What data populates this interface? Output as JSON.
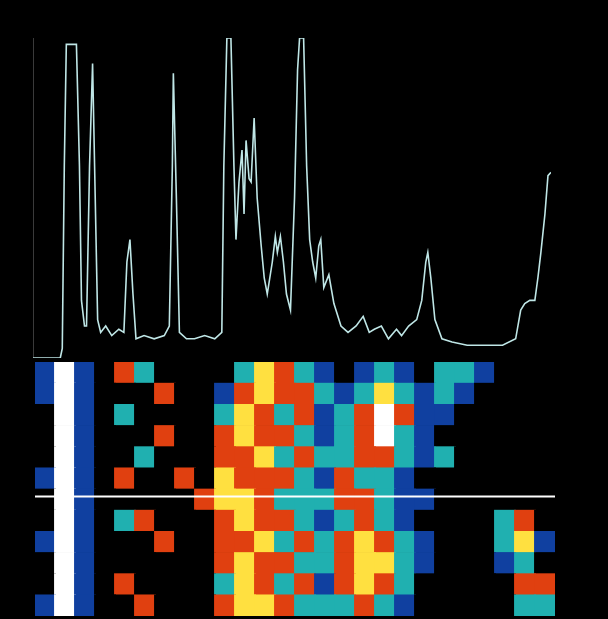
{
  "chart_data": [
    {
      "type": "line",
      "x": [
        0,
        27,
        29,
        31,
        33,
        43,
        46,
        48,
        51,
        53,
        56,
        59,
        61,
        64,
        67,
        72,
        78,
        85,
        90,
        93,
        96,
        99,
        102,
        110,
        120,
        130,
        135,
        138,
        139,
        142,
        145,
        152,
        160,
        170,
        180,
        187,
        189,
        192,
        196,
        199,
        201,
        204,
        207,
        209,
        211,
        214,
        216,
        219,
        222,
        226,
        229,
        232,
        237,
        240,
        242,
        245,
        248,
        251,
        255,
        259,
        262,
        264,
        268,
        271,
        274,
        277,
        280,
        283,
        285,
        288,
        293,
        298,
        305,
        312,
        320,
        327,
        333,
        338,
        345,
        352,
        360,
        365,
        372,
        380,
        385,
        389,
        391,
        394,
        398,
        405,
        415,
        430,
        450,
        465,
        478,
        483,
        487,
        492,
        497,
        500,
        503,
        507,
        510,
        513
      ],
      "values": [
        0,
        0,
        3,
        60,
        98,
        98,
        60,
        18,
        10,
        10,
        60,
        92,
        60,
        12,
        8,
        10,
        7,
        9,
        8,
        30,
        37,
        20,
        6,
        7,
        6,
        7,
        10,
        60,
        89,
        50,
        8,
        6,
        6,
        7,
        6,
        8,
        60,
        100,
        100,
        60,
        37,
        55,
        65,
        45,
        68,
        56,
        55,
        75,
        50,
        35,
        25,
        20,
        30,
        38,
        33,
        38,
        30,
        20,
        15,
        50,
        90,
        100,
        100,
        60,
        37,
        30,
        25,
        35,
        37,
        22,
        26,
        17,
        10,
        8,
        10,
        13,
        8,
        9,
        10,
        6,
        9,
        7,
        10,
        12,
        18,
        30,
        33,
        25,
        12,
        6,
        5,
        4,
        4,
        4,
        6,
        15,
        17,
        18,
        18,
        25,
        33,
        45,
        57,
        58
      ],
      "color": "#bfe6e6",
      "xlim": [
        0,
        513
      ],
      "ylim": [
        0,
        100
      ],
      "grid": false,
      "tick_labels": false
    },
    {
      "type": "heatmap",
      "cells": [
        [
          1,
          5,
          1,
          0,
          3,
          2,
          0,
          0,
          0,
          0,
          2,
          4,
          3,
          2,
          1,
          0,
          1,
          2,
          1,
          0,
          2,
          2,
          1,
          0,
          0,
          0
        ],
        [
          1,
          5,
          1,
          0,
          0,
          0,
          3,
          0,
          0,
          1,
          3,
          4,
          3,
          3,
          2,
          1,
          2,
          4,
          2,
          1,
          2,
          1,
          0,
          0,
          0,
          0
        ],
        [
          0,
          5,
          1,
          0,
          2,
          0,
          0,
          0,
          0,
          2,
          4,
          3,
          2,
          3,
          1,
          2,
          3,
          5,
          3,
          1,
          1,
          0,
          0,
          0,
          0,
          0
        ],
        [
          0,
          5,
          1,
          0,
          0,
          0,
          3,
          0,
          0,
          3,
          4,
          3,
          3,
          2,
          1,
          2,
          3,
          5,
          2,
          1,
          0,
          0,
          0,
          0,
          0,
          0
        ],
        [
          0,
          5,
          1,
          0,
          0,
          2,
          0,
          0,
          0,
          3,
          3,
          4,
          2,
          3,
          2,
          2,
          3,
          3,
          2,
          1,
          2,
          0,
          0,
          0,
          0,
          0
        ],
        [
          1,
          5,
          1,
          0,
          3,
          0,
          0,
          3,
          0,
          4,
          3,
          3,
          3,
          2,
          1,
          3,
          2,
          2,
          1,
          0,
          0,
          0,
          0,
          0,
          0,
          0
        ],
        [
          0,
          5,
          1,
          0,
          0,
          0,
          0,
          0,
          3,
          4,
          4,
          3,
          2,
          2,
          2,
          3,
          3,
          2,
          1,
          1,
          0,
          0,
          0,
          0,
          0,
          0
        ],
        [
          0,
          5,
          1,
          0,
          2,
          3,
          0,
          0,
          0,
          3,
          4,
          3,
          3,
          2,
          1,
          2,
          3,
          2,
          1,
          0,
          0,
          0,
          0,
          2,
          3,
          0
        ],
        [
          1,
          5,
          1,
          0,
          0,
          0,
          3,
          0,
          0,
          3,
          3,
          4,
          2,
          3,
          2,
          3,
          4,
          3,
          2,
          1,
          0,
          0,
          0,
          2,
          4,
          1
        ],
        [
          0,
          5,
          1,
          0,
          0,
          0,
          0,
          0,
          0,
          3,
          4,
          3,
          3,
          2,
          2,
          3,
          4,
          4,
          2,
          1,
          0,
          0,
          0,
          1,
          2,
          0
        ],
        [
          0,
          5,
          1,
          0,
          3,
          0,
          0,
          0,
          0,
          2,
          4,
          3,
          2,
          3,
          1,
          3,
          4,
          3,
          2,
          0,
          0,
          0,
          0,
          0,
          3,
          3
        ],
        [
          1,
          5,
          1,
          0,
          0,
          3,
          0,
          0,
          0,
          3,
          4,
          4,
          3,
          2,
          2,
          2,
          3,
          2,
          1,
          0,
          0,
          0,
          0,
          0,
          2,
          2
        ]
      ],
      "xlim": [
        0,
        26
      ],
      "ylim": [
        0,
        12
      ],
      "profile_y": 6.35,
      "grid": false,
      "tick_labels": false
    }
  ]
}
